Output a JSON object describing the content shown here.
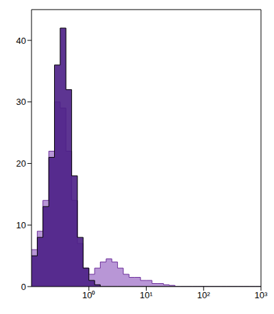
{
  "chart_data": {
    "type": "histogram",
    "log": "x",
    "grid": false,
    "bins": [
      0.1,
      0.126,
      0.158,
      0.2,
      0.251,
      0.316,
      0.398,
      0.501,
      0.631,
      0.794,
      1,
      1.26,
      1.58,
      2,
      2.51,
      3.16,
      3.98,
      5.01,
      6.31,
      7.94,
      10,
      12.6,
      15.8,
      20,
      25.1,
      31.6,
      39.8,
      50.1,
      63.1,
      79.4,
      100,
      126,
      158,
      200,
      251,
      316,
      398,
      501,
      631,
      794,
      1000
    ],
    "series": [
      {
        "color": "#b896d6",
        "values": [
          6,
          9,
          14,
          22,
          30,
          29,
          22,
          14,
          7,
          3,
          2,
          3,
          4,
          4.5,
          4,
          3,
          2,
          1.5,
          1.5,
          1,
          1,
          0.5,
          0.5,
          0.3,
          0.2,
          0,
          0,
          0,
          0,
          0,
          0,
          0,
          0,
          0,
          0,
          0,
          0,
          0,
          0,
          0
        ]
      },
      {
        "color": "#4b1f86",
        "values": [
          5,
          8,
          13,
          21,
          36,
          42,
          32,
          18,
          8,
          3,
          1,
          0.3,
          0,
          0,
          0,
          0,
          0,
          0,
          0,
          0,
          0,
          0,
          0,
          0,
          0,
          0,
          0,
          0,
          0,
          0,
          0,
          0,
          0,
          0,
          0,
          0,
          0,
          0,
          0,
          0
        ]
      }
    ],
    "xlim": [
      0.1,
      1000
    ],
    "xticks": [
      {
        "value": 1,
        "label": "10⁰"
      },
      {
        "value": 10,
        "label": "10¹"
      },
      {
        "value": 100,
        "label": "10²"
      },
      {
        "value": 1000,
        "label": "10³"
      }
    ],
    "ylim": [
      0,
      45
    ],
    "yticks": [
      0,
      10,
      20,
      30,
      40
    ]
  }
}
